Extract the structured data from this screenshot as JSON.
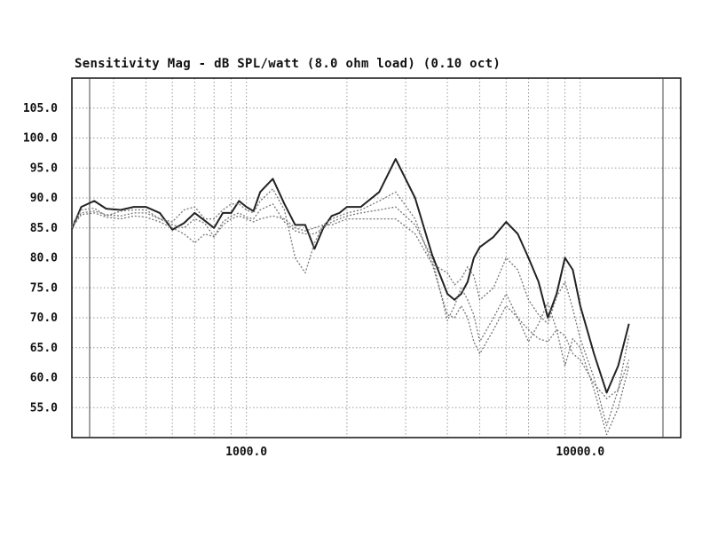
{
  "chart_data": {
    "type": "line",
    "title": "Sensitivity Mag - dB SPL/watt (8.0 ohm load) (0.10 oct)",
    "xlabel": "",
    "ylabel": "",
    "xscale": "log",
    "xlim": [
      300,
      20000
    ],
    "ylim": [
      50,
      110
    ],
    "grid": true,
    "y_ticks": [
      55,
      60,
      65,
      70,
      75,
      80,
      85,
      90,
      95,
      100,
      105
    ],
    "y_tick_labels": [
      "55.0",
      "60.0",
      "65.0",
      "70.0",
      "75.0",
      "80.0",
      "85.0",
      "90.0",
      "95.0",
      "100.0",
      "105.0"
    ],
    "x_ticks": [
      1000,
      10000
    ],
    "x_tick_labels": [
      "1000.0",
      "10000.0"
    ],
    "colors": {
      "solid": "#222222",
      "dotted": "#777777",
      "grid": "#9a9a9a",
      "frame": "#111111"
    },
    "series": [
      {
        "style": "solid",
        "x": [
          300,
          320,
          350,
          380,
          420,
          460,
          500,
          550,
          600,
          650,
          700,
          750,
          800,
          850,
          900,
          950,
          1000,
          1050,
          1100,
          1200,
          1300,
          1400,
          1500,
          1600,
          1700,
          1800,
          1900,
          2000,
          2200,
          2500,
          2800,
          3200,
          3600,
          4000,
          4200,
          4400,
          4600,
          4800,
          5000,
          5500,
          6000,
          6500,
          7000,
          7500,
          8000,
          8500,
          9000,
          9500,
          10000,
          11000,
          12000,
          13000,
          14000,
          15000,
          16000,
          17000,
          18000,
          19000,
          20000
        ],
        "y": [
          84.8,
          88.5,
          89.5,
          88.2,
          88.0,
          88.5,
          88.5,
          87.5,
          84.7,
          85.8,
          87.5,
          86.2,
          85.0,
          87.5,
          87.5,
          89.5,
          88.5,
          87.8,
          91.0,
          93.2,
          89.0,
          85.5,
          85.5,
          81.5,
          85.0,
          87.0,
          87.5,
          88.5,
          88.5,
          91.0,
          96.5,
          90.0,
          80.5,
          74.0,
          73.0,
          74.0,
          76.0,
          80.0,
          81.8,
          83.5,
          86.0,
          84.0,
          80.0,
          76.0,
          70.0,
          74.0,
          80.0,
          78.0,
          72.0,
          64.0,
          57.5,
          62.0,
          69.0,
          null,
          null,
          null,
          null,
          null,
          null
        ]
      },
      {
        "style": "dotted",
        "x": [
          300,
          320,
          350,
          380,
          420,
          460,
          500,
          550,
          600,
          650,
          700,
          750,
          800,
          850,
          900,
          950,
          1000,
          1050,
          1100,
          1200,
          1300,
          1400,
          1500,
          1600,
          1700,
          1800,
          1900,
          2000,
          2200,
          2500,
          2800,
          3200,
          3600,
          4000,
          4200,
          4400,
          4600,
          4800,
          5000,
          5500,
          6000,
          6500,
          7000,
          7500,
          8000,
          8500,
          9000,
          9500,
          10000,
          11000,
          12000,
          13000,
          14000,
          15000,
          16000,
          17000,
          18000,
          19000,
          20000
        ],
        "y": [
          85.5,
          88.0,
          88.3,
          87.0,
          87.8,
          88.0,
          88.0,
          86.5,
          86.0,
          88.0,
          88.5,
          86.5,
          86.5,
          88.0,
          89.0,
          89.0,
          88.0,
          87.5,
          89.5,
          91.5,
          88.0,
          80.0,
          77.5,
          82.5,
          85.5,
          86.5,
          87.0,
          87.5,
          88.0,
          89.5,
          91.0,
          86.5,
          79.0,
          77.5,
          75.5,
          76.5,
          78.5,
          77.0,
          73.0,
          75.0,
          80.0,
          78.0,
          73.0,
          70.5,
          69.0,
          73.5,
          76.0,
          71.5,
          66.5,
          60.0,
          52.0,
          58.0,
          67.0,
          null,
          null,
          null,
          null,
          null,
          null
        ]
      },
      {
        "style": "dotted",
        "x": [
          300,
          320,
          350,
          380,
          420,
          460,
          500,
          550,
          600,
          650,
          700,
          750,
          800,
          850,
          900,
          950,
          1000,
          1050,
          1100,
          1200,
          1300,
          1400,
          1500,
          1600,
          1700,
          1800,
          1900,
          2000,
          2200,
          2500,
          2800,
          3200,
          3600,
          4000,
          4200,
          4400,
          4600,
          4800,
          5000,
          5500,
          6000,
          6500,
          7000,
          7500,
          8000,
          8500,
          9000,
          9500,
          10000,
          11000,
          12000,
          13000,
          14000,
          15000,
          16000,
          17000,
          18000,
          19000,
          20000
        ],
        "y": [
          85.2,
          87.5,
          87.8,
          87.2,
          87.0,
          87.5,
          87.5,
          86.5,
          85.5,
          85.0,
          86.5,
          85.8,
          83.5,
          86.0,
          87.0,
          87.5,
          86.8,
          86.5,
          88.0,
          89.0,
          86.0,
          84.5,
          84.0,
          84.0,
          85.0,
          86.0,
          86.5,
          87.0,
          87.5,
          88.0,
          88.5,
          85.5,
          80.0,
          69.5,
          72.0,
          75.0,
          73.0,
          70.5,
          66.0,
          70.0,
          74.0,
          70.0,
          66.0,
          69.0,
          72.5,
          68.0,
          62.0,
          66.5,
          65.0,
          58.0,
          50.5,
          55.0,
          62.0,
          null,
          null,
          null,
          null,
          null,
          null
        ]
      },
      {
        "style": "dotted",
        "x": [
          300,
          320,
          350,
          380,
          420,
          460,
          500,
          550,
          600,
          650,
          700,
          750,
          800,
          850,
          900,
          950,
          1000,
          1050,
          1100,
          1200,
          1300,
          1400,
          1500,
          1600,
          1700,
          1800,
          1900,
          2000,
          2200,
          2500,
          2800,
          3200,
          3600,
          4000,
          4200,
          4400,
          4600,
          4800,
          5000,
          5500,
          6000,
          6500,
          7000,
          7500,
          8000,
          8500,
          9000,
          9500,
          10000,
          11000,
          12000,
          13000,
          14000,
          15000,
          16000,
          17000,
          18000,
          19000,
          20000
        ],
        "y": [
          85.0,
          87.2,
          87.5,
          86.8,
          86.5,
          87.0,
          86.8,
          86.0,
          85.0,
          84.0,
          82.5,
          84.0,
          83.5,
          85.5,
          86.5,
          87.0,
          86.5,
          86.0,
          86.5,
          87.0,
          86.5,
          85.0,
          84.5,
          85.0,
          85.5,
          85.5,
          86.0,
          86.5,
          86.5,
          86.5,
          86.5,
          84.0,
          79.0,
          70.5,
          70.0,
          72.0,
          70.0,
          66.0,
          64.0,
          68.0,
          72.0,
          70.0,
          68.0,
          66.5,
          66.0,
          68.0,
          67.0,
          64.0,
          63.0,
          59.0,
          56.5,
          58.0,
          63.0,
          null,
          null,
          null,
          null,
          null,
          null
        ]
      }
    ]
  }
}
